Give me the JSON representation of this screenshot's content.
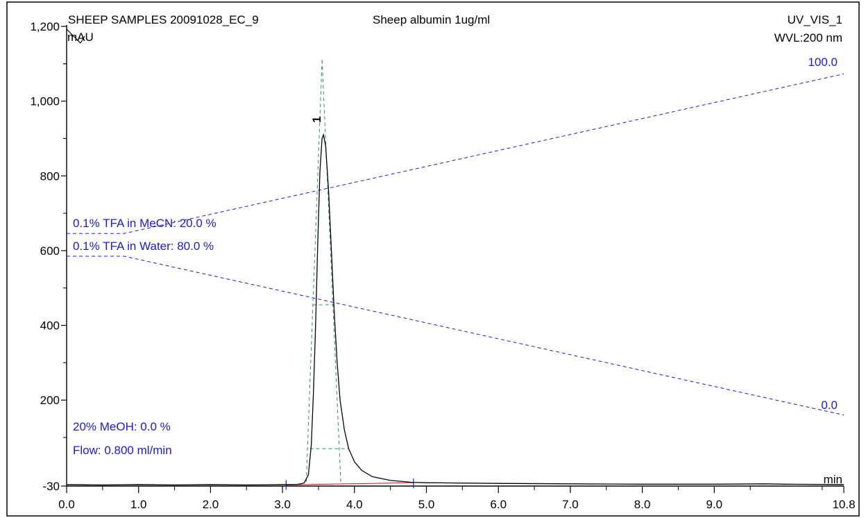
{
  "header": {
    "sample": "SHEEP SAMPLES 20091028_EC_9",
    "description": "Sheep albumin 1ug/ml",
    "channel": "UV_VIS_1",
    "wavelength": "WVL:200 nm"
  },
  "gradient_labels": {
    "mecn": "0.1% TFA in MeCN: 20.0 %",
    "water": "0.1% TFA in Water: 80.0 %",
    "top_end": "100.0",
    "bottom_end": "0.0",
    "meoh": "20% MeOH: 0.0 %",
    "flow": "Flow: 0.800 ml/min"
  },
  "chart_data": {
    "type": "line",
    "xlabel": "min",
    "ylabel": "mAU",
    "xlim": [
      0.0,
      10.8
    ],
    "ylim": [
      -30,
      1200
    ],
    "x_ticks": [
      "0.0",
      "1.0",
      "2.0",
      "3.0",
      "4.0",
      "5.0",
      "6.0",
      "7.0",
      "8.0",
      "9.0",
      "10.8"
    ],
    "y_ticks": [
      "-30",
      "200",
      "400",
      "600",
      "800",
      "1,000",
      "1,200"
    ],
    "grid": false,
    "peak": {
      "label": "1",
      "retention_time": 3.55,
      "height": 910
    },
    "integration_baseline": {
      "start": 3.05,
      "end": 4.82
    },
    "colors": {
      "signal": "#000000",
      "gradient": "#1a1ad4",
      "baseline": "#ff0000",
      "fit": "#2a8c7a"
    },
    "series": [
      {
        "values": [
          [
            0.0,
            -26
          ],
          [
            0.5,
            -27
          ],
          [
            1.0,
            -26
          ],
          [
            1.5,
            -27
          ],
          [
            2.0,
            -26
          ],
          [
            2.5,
            -27
          ],
          [
            3.0,
            -26
          ],
          [
            3.2,
            -26
          ],
          [
            3.3,
            -22
          ],
          [
            3.36,
            0
          ],
          [
            3.4,
            80
          ],
          [
            3.43,
            220
          ],
          [
            3.46,
            400
          ],
          [
            3.49,
            620
          ],
          [
            3.52,
            810
          ],
          [
            3.55,
            900
          ],
          [
            3.57,
            910
          ],
          [
            3.6,
            880
          ],
          [
            3.64,
            760
          ],
          [
            3.68,
            600
          ],
          [
            3.72,
            430
          ],
          [
            3.76,
            300
          ],
          [
            3.8,
            200
          ],
          [
            3.86,
            120
          ],
          [
            3.92,
            70
          ],
          [
            4.0,
            35
          ],
          [
            4.1,
            12
          ],
          [
            4.25,
            -5
          ],
          [
            4.5,
            -15
          ],
          [
            4.8,
            -20
          ],
          [
            5.0,
            -21
          ],
          [
            6.0,
            -23
          ],
          [
            7.0,
            -24
          ],
          [
            8.0,
            -25
          ],
          [
            9.0,
            -25
          ],
          [
            9.7,
            -24
          ],
          [
            10.0,
            -25
          ],
          [
            10.8,
            -26
          ]
        ]
      },
      {
        "name": "0.1% TFA in MeCN",
        "values": [
          [
            0.0,
            646
          ],
          [
            0.8,
            646
          ],
          [
            10.8,
            1073
          ]
        ]
      },
      {
        "name": "0.1% TFA in Water",
        "values": [
          [
            0.0,
            585
          ],
          [
            0.8,
            585
          ],
          [
            10.8,
            160
          ]
        ]
      }
    ]
  }
}
